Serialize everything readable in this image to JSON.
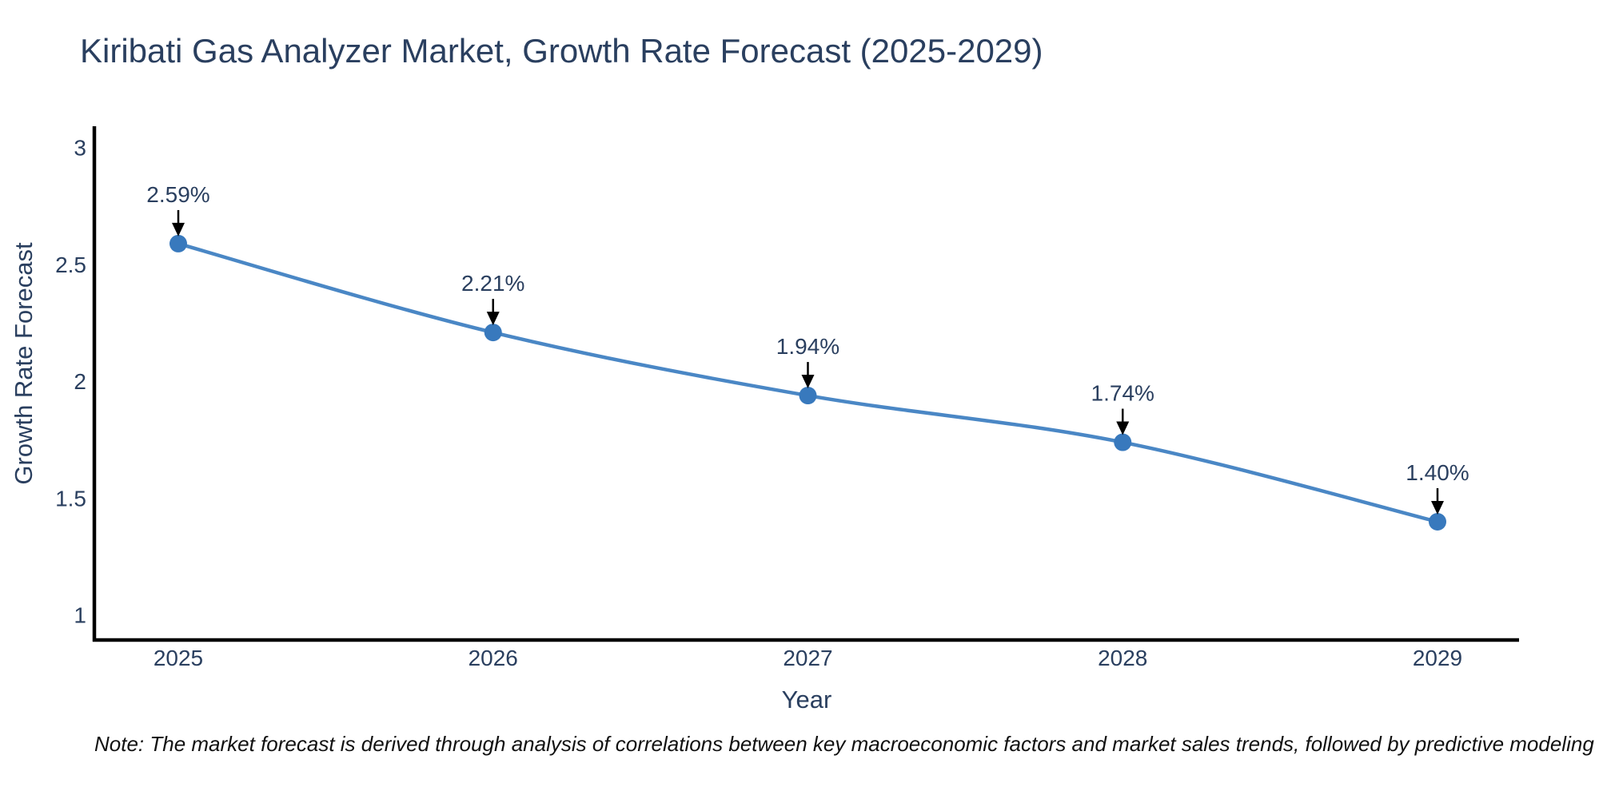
{
  "note": "Note: The market forecast is derived through analysis of correlations between key macroeconomic factors and market sales trends, followed by predictive modeling to project future sales",
  "chart_data": {
    "type": "line",
    "title": "Kiribati Gas Analyzer Market, Growth Rate Forecast (2025-2029)",
    "xlabel": "Year",
    "ylabel": "Growth Rate Forecast",
    "categories": [
      "2025",
      "2026",
      "2027",
      "2028",
      "2029"
    ],
    "values": [
      2.59,
      2.21,
      1.94,
      1.74,
      1.4
    ],
    "point_labels": [
      "2.59%",
      "2.21%",
      "1.94%",
      "1.74%",
      "1.40%"
    ],
    "y_ticks": [
      "3",
      "2.5",
      "2",
      "1.5",
      "1"
    ],
    "ylim": [
      0.9,
      3.1
    ],
    "grid": false,
    "legend": "none",
    "line_color": "#4a87c5",
    "marker_color": "#3879bd",
    "axis_color": "#000000",
    "text_color": "#2a3f5f",
    "annotation_arrow_color": "#000000"
  }
}
